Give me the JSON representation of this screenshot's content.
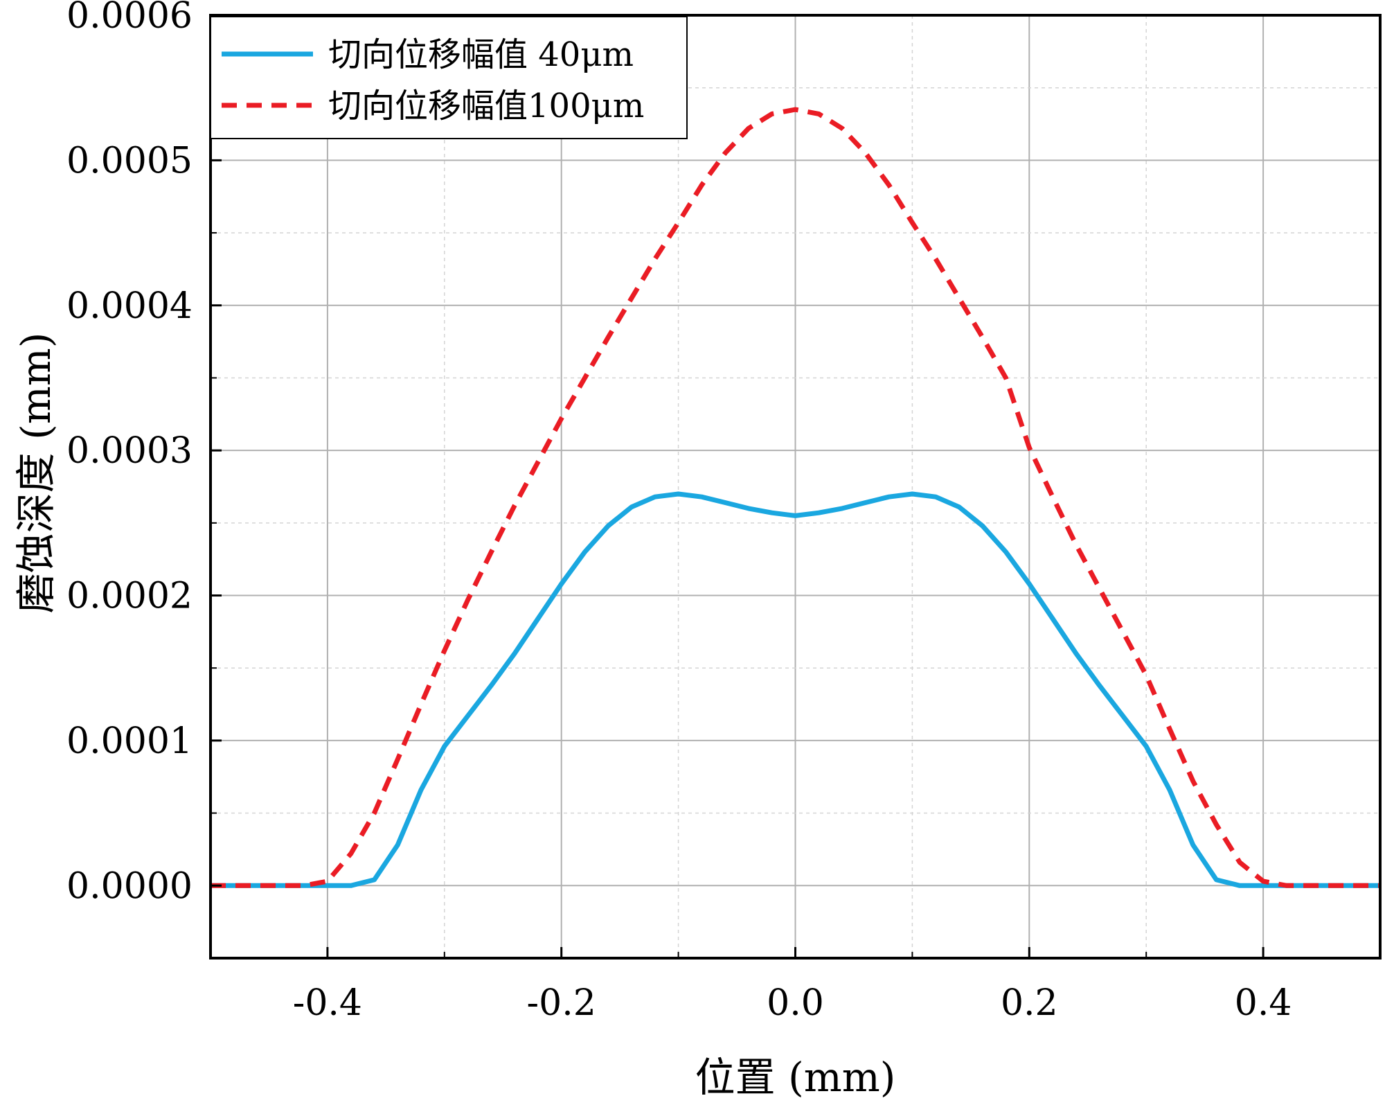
{
  "chart_data": {
    "type": "line",
    "title": "",
    "xlabel": "位置 (mm)",
    "ylabel": "磨蚀深度 (mm)",
    "xlim": [
      -0.5,
      0.5
    ],
    "ylim": [
      -5e-05,
      0.0006
    ],
    "grid": true,
    "legend_position": "top-left",
    "x_ticks": [
      -0.4,
      -0.2,
      0.0,
      0.2,
      0.4
    ],
    "x_tick_labels": [
      "-0.4",
      "-0.2",
      "0.0",
      "0.2",
      "0.4"
    ],
    "y_ticks": [
      0.0,
      0.0001,
      0.0002,
      0.0003,
      0.0004,
      0.0005,
      0.0006
    ],
    "y_tick_labels": [
      "0.0000",
      "0.0001",
      "0.0002",
      "0.0003",
      "0.0004",
      "0.0005",
      "0.0006"
    ],
    "series": [
      {
        "name": "切向位移幅值 40μm",
        "color": "#1aa7e0",
        "style": "solid",
        "x": [
          -0.5,
          -0.38,
          -0.36,
          -0.34,
          -0.32,
          -0.3,
          -0.28,
          -0.26,
          -0.24,
          -0.22,
          -0.2,
          -0.18,
          -0.16,
          -0.14,
          -0.12,
          -0.1,
          -0.08,
          -0.06,
          -0.04,
          -0.02,
          0.0,
          0.02,
          0.04,
          0.06,
          0.08,
          0.1,
          0.12,
          0.14,
          0.16,
          0.18,
          0.2,
          0.22,
          0.24,
          0.26,
          0.28,
          0.3,
          0.32,
          0.34,
          0.36,
          0.38,
          0.5
        ],
        "y": [
          0.0,
          0.0,
          4e-06,
          2.8e-05,
          6.6e-05,
          9.6e-05,
          0.000117,
          0.000138,
          0.00016,
          0.000184,
          0.000208,
          0.00023,
          0.000248,
          0.000261,
          0.000268,
          0.00027,
          0.000268,
          0.000264,
          0.00026,
          0.000257,
          0.000255,
          0.000257,
          0.00026,
          0.000264,
          0.000268,
          0.00027,
          0.000268,
          0.000261,
          0.000248,
          0.00023,
          0.000208,
          0.000184,
          0.00016,
          0.000138,
          0.000117,
          9.6e-05,
          6.6e-05,
          2.8e-05,
          4e-06,
          0.0,
          0.0
        ]
      },
      {
        "name": "切向位移幅值100μm",
        "color": "#ea1c24",
        "style": "dashed",
        "x": [
          -0.5,
          -0.42,
          -0.4,
          -0.38,
          -0.36,
          -0.34,
          -0.32,
          -0.3,
          -0.28,
          -0.26,
          -0.24,
          -0.22,
          -0.2,
          -0.18,
          -0.16,
          -0.14,
          -0.12,
          -0.1,
          -0.08,
          -0.06,
          -0.04,
          -0.02,
          0.0,
          0.02,
          0.04,
          0.06,
          0.08,
          0.1,
          0.12,
          0.14,
          0.16,
          0.18,
          0.2,
          0.22,
          0.24,
          0.26,
          0.28,
          0.3,
          0.32,
          0.34,
          0.36,
          0.38,
          0.4,
          0.42,
          0.5
        ],
        "y": [
          0.0,
          0.0,
          3e-06,
          2.2e-05,
          5e-05,
          8.7e-05,
          0.000125,
          0.000162,
          0.000197,
          0.00023,
          0.000262,
          0.000292,
          0.000322,
          0.00035,
          0.000378,
          0.000405,
          0.000432,
          0.000457,
          0.000483,
          0.000505,
          0.000522,
          0.000532,
          0.000535,
          0.000532,
          0.000522,
          0.000505,
          0.000483,
          0.000457,
          0.000432,
          0.000405,
          0.000378,
          0.00035,
          0.000302,
          0.000268,
          0.000235,
          0.000205,
          0.000175,
          0.000145,
          0.000108,
          7.2e-05,
          4.2e-05,
          1.6e-05,
          3e-06,
          0.0,
          0.0
        ]
      }
    ]
  }
}
